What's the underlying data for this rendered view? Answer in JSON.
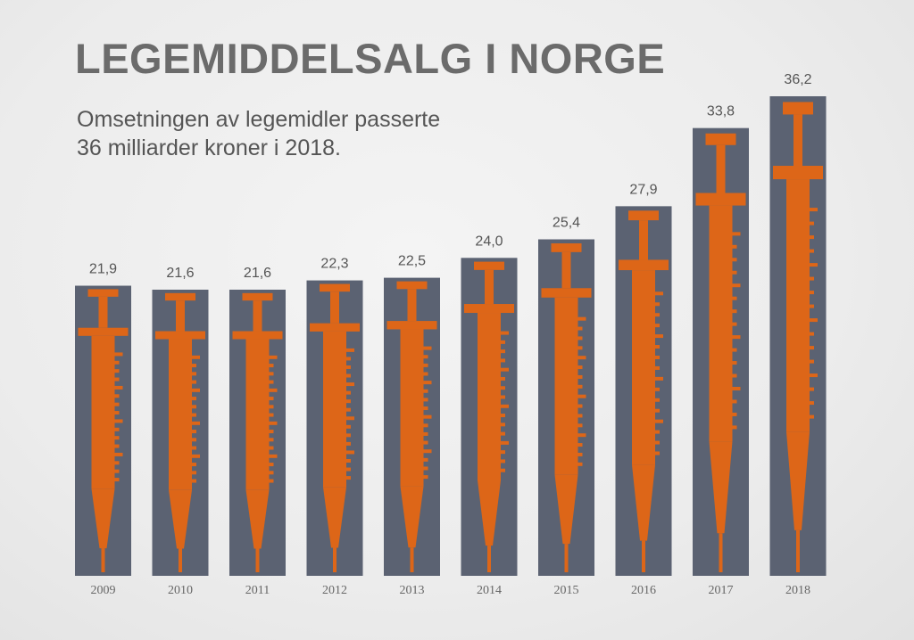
{
  "title": "LEGEMIDDELSALG I NORGE",
  "subtitle_line1": "Omsetningen av legemidler passerte",
  "subtitle_line2": "36 milliarder kroner i 2018.",
  "colors": {
    "bar": "#5b6272",
    "syringe": "#dd6618",
    "value_label": "#555555",
    "year_label": "#666666"
  },
  "chart_data": {
    "type": "bar",
    "title": "LEGEMIDDELSALG I NORGE",
    "xlabel": "",
    "ylabel": "",
    "categories": [
      "2009",
      "2010",
      "2011",
      "2012",
      "2013",
      "2014",
      "2015",
      "2016",
      "2017",
      "2018"
    ],
    "values": [
      21.9,
      21.6,
      21.6,
      22.3,
      22.5,
      24.0,
      25.4,
      27.9,
      33.8,
      36.2
    ],
    "value_labels": [
      "21,9",
      "21,6",
      "21,6",
      "22,3",
      "22,5",
      "24,0",
      "25,4",
      "27,9",
      "33,8",
      "36,2"
    ],
    "ylim": [
      0,
      36.2
    ],
    "grid": false,
    "legend": "none"
  }
}
